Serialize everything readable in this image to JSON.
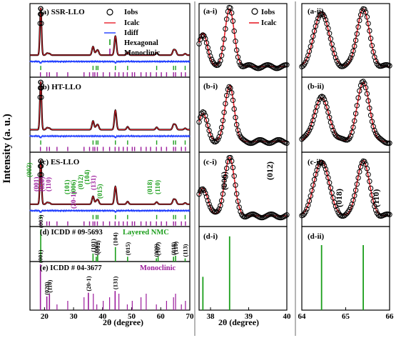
{
  "y_axis_label": "Intensity (a. u.)",
  "colors": {
    "observed": "#000000",
    "calculated": "#e8202a",
    "difference": "#1f3dff",
    "hexagonal": "#1b9e1b",
    "monoclinic": "#9b1b9b",
    "frame": "#000000",
    "separator": "#b5b5b5"
  },
  "legend": {
    "iobs": "Iobs",
    "icalc": "Icalc",
    "idiff": "Idiff",
    "hexagonal": "Hexagonal",
    "monoclinic": "Monoclinic"
  },
  "rows": {
    "a": "(a) SSR-LLO",
    "b": "(b) HT-LLO",
    "c": "(c) ES-LLO",
    "d": "(d) ICDD # 09-5693",
    "d_note": "Layered NMC",
    "e": "(e) ICDD # 04-3677",
    "e_note": "Monoclinic"
  },
  "zoom_labels": {
    "a_i": "(a-i)",
    "b_i": "(b-i)",
    "c_i": "(c-i)",
    "d_i": "(d-i)",
    "a_ii": "(a-ii)",
    "b_ii": "(b-ii)",
    "c_ii": "(c-ii)",
    "d_ii": "(d-ii)"
  },
  "zoom_peak_labels": {
    "c_i_006": "(006)",
    "c_i_012": "(012)",
    "c_ii_018": "(018)",
    "c_ii_110": "(110)"
  },
  "c_row_hkl": {
    "green": [
      "(003)",
      "(101)",
      "(006)",
      "(012)",
      "(104)",
      "(015)",
      "(018)",
      "(110)"
    ],
    "purple": [
      "(001)",
      "(020)",
      "(110)",
      "(20-1)",
      "(131)"
    ]
  },
  "icdd_hex_labels": [
    "(003)",
    "(101)",
    "(006)",
    "(012)",
    "(104)",
    "(015)",
    "(009)",
    "(107)",
    "(018)",
    "(110)",
    "(113)"
  ],
  "icdd_mono_labels": [
    "(001)",
    "(020)",
    "(110)",
    "(20-1)",
    "(131)"
  ],
  "chart_data": [
    {
      "type": "line",
      "panel": "main",
      "xlabel": "2θ (degree)",
      "ylabel": "Intensity (a. u.)",
      "xlim": [
        15,
        70
      ],
      "xticks": [
        20,
        30,
        40,
        50,
        60,
        70
      ],
      "series": [
        {
          "name": "Iobs",
          "x": [
            18.7,
            20.9,
            21.7,
            36.7,
            37.8,
            38.4,
            44.4,
            48.6,
            58.6,
            64.4,
            65.1,
            68.4
          ],
          "values": [
            100,
            4,
            3,
            18,
            6,
            9,
            40,
            6,
            5,
            10,
            9,
            3
          ]
        },
        {
          "name": "Icalc"
        },
        {
          "name": "Idiff"
        }
      ],
      "tick_positions": {
        "Hexagonal": [
          18.7,
          36.7,
          37.8,
          38.4,
          44.4,
          48.6,
          58.6,
          64.4,
          65.1,
          68.4
        ],
        "Monoclinic": [
          18.6,
          20.8,
          21.7,
          24.3,
          28.0,
          33.6,
          35.5,
          36.7,
          37.3,
          38.2,
          40.2,
          42.4,
          44.3,
          45.6,
          47.1,
          48.5,
          50.2,
          51.0,
          53.2,
          55.0,
          56.5,
          58.5,
          60.2,
          62.0,
          64.4,
          65.1,
          67.1,
          68.5
        ]
      }
    },
    {
      "type": "bar",
      "panel": "ICDD # 09-5693",
      "x": [
        18.7,
        36.7,
        37.8,
        38.3,
        44.4,
        48.6,
        58.5,
        59.1,
        64.4,
        65.1,
        68.4
      ],
      "labels": [
        "(003)",
        "(101)",
        "(006)",
        "(012)",
        "(104)",
        "(015)",
        "(009)",
        "(107)",
        "(018)",
        "(110)",
        "(113)"
      ],
      "values": [
        100,
        25,
        15,
        20,
        45,
        15,
        10,
        15,
        15,
        18,
        10
      ]
    },
    {
      "type": "bar",
      "panel": "ICDD # 04-3677",
      "x": [
        18.6,
        20.8,
        21.7,
        35.1,
        44.3
      ],
      "labels": [
        "(001)",
        "(020)",
        "(110)",
        "(20-1)",
        "(131)"
      ],
      "values": [
        100,
        30,
        35,
        38,
        42
      ]
    },
    {
      "type": "line",
      "panel": "zoom-i",
      "xlabel": "2θ (degree)",
      "xlim": [
        37.7,
        40
      ],
      "xticks": [
        38,
        39,
        40
      ],
      "peaks": {
        "(006)": 37.8,
        "(012)": 38.5
      },
      "series": [
        {
          "name": "Iobs"
        },
        {
          "name": "Icalc"
        }
      ]
    },
    {
      "type": "line",
      "panel": "zoom-ii",
      "xlim": [
        64,
        66
      ],
      "xticks": [
        64,
        65,
        66
      ],
      "peaks": {
        "(018)": 64.45,
        "(110)": 65.4
      },
      "series": [
        {
          "name": "Iobs"
        },
        {
          "name": "Icalc"
        }
      ]
    }
  ]
}
